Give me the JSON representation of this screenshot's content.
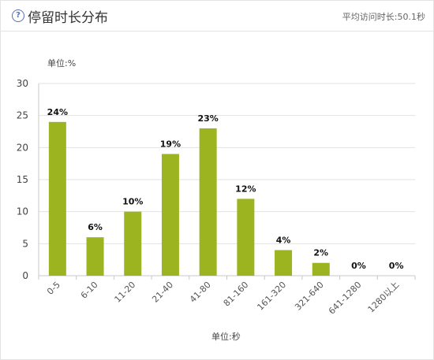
{
  "header": {
    "title": "停留时长分布",
    "avg_label": "平均访问时长:50.1秒",
    "help_icon": "help-circle-icon"
  },
  "chart_data": {
    "type": "bar",
    "title": "停留时长分布",
    "categories": [
      "0-5",
      "6-10",
      "11-20",
      "21-40",
      "41-80",
      "81-160",
      "161-320",
      "321-640",
      "641-1280",
      "1280以上"
    ],
    "values": [
      24,
      6,
      10,
      19,
      23,
      12,
      4,
      2,
      0,
      0
    ],
    "data_labels": [
      "24%",
      "6%",
      "10%",
      "19%",
      "23%",
      "12%",
      "4%",
      "2%",
      "0%",
      "0%"
    ],
    "ylabel": "单位:%",
    "xlabel": "单位:秒",
    "ylim": [
      0,
      30
    ],
    "yticks": [
      0,
      5,
      10,
      15,
      20,
      25,
      30
    ],
    "grid": true,
    "bar_color": "#9cb41f"
  }
}
